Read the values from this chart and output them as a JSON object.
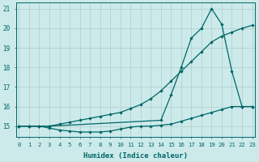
{
  "xlabel": "Humidex (Indice chaleur)",
  "background_color": "#cceaea",
  "grid_color": "#b0cccc",
  "line_color": "#006666",
  "xlim_min": -0.3,
  "xlim_max": 23.3,
  "ylim_min": 14.45,
  "ylim_max": 21.3,
  "yticks": [
    15,
    16,
    17,
    18,
    19,
    20,
    21
  ],
  "xticks": [
    0,
    1,
    2,
    3,
    4,
    5,
    6,
    7,
    8,
    9,
    10,
    11,
    12,
    13,
    14,
    15,
    16,
    17,
    18,
    19,
    20,
    21,
    22,
    23
  ],
  "series1_x": [
    0,
    1,
    2,
    3,
    4,
    5,
    6,
    7,
    8,
    9,
    10,
    11,
    12,
    13,
    14,
    15,
    16,
    17,
    18,
    19,
    20,
    21,
    22,
    23
  ],
  "series1_y": [
    15.0,
    15.0,
    15.0,
    14.9,
    14.8,
    14.75,
    14.7,
    14.7,
    14.7,
    14.75,
    14.85,
    14.95,
    15.0,
    15.0,
    15.05,
    15.1,
    15.25,
    15.4,
    15.55,
    15.7,
    15.85,
    16.0,
    16.0,
    16.0
  ],
  "series2_x": [
    0,
    1,
    2,
    3,
    4,
    5,
    6,
    7,
    8,
    9,
    10,
    11,
    12,
    13,
    14,
    15,
    16,
    17,
    18,
    19,
    20,
    21,
    22,
    23
  ],
  "series2_y": [
    15.0,
    15.0,
    15.0,
    15.0,
    15.1,
    15.2,
    15.3,
    15.4,
    15.5,
    15.6,
    15.7,
    15.9,
    16.1,
    16.4,
    16.8,
    17.3,
    17.8,
    18.3,
    18.8,
    19.3,
    19.6,
    19.8,
    20.0,
    20.15
  ],
  "series3_x": [
    0,
    1,
    2,
    3,
    14,
    15,
    16,
    17,
    18,
    19,
    20,
    21,
    22,
    23
  ],
  "series3_y": [
    15.0,
    15.0,
    15.0,
    15.0,
    15.3,
    16.6,
    18.0,
    19.5,
    20.0,
    21.0,
    20.2,
    17.8,
    16.0,
    16.0
  ]
}
